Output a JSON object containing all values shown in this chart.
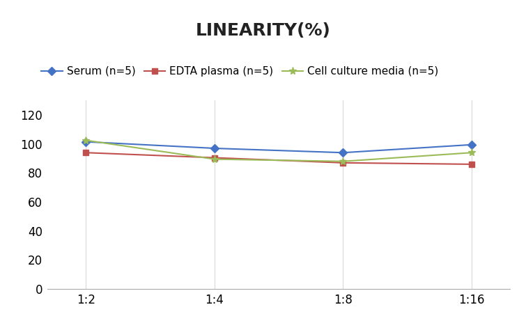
{
  "title": "LINEARITY(%)",
  "x_labels": [
    "1:2",
    "1:4",
    "1:8",
    "1:16"
  ],
  "x_positions": [
    0,
    1,
    2,
    3
  ],
  "series": [
    {
      "label": "Serum (n=5)",
      "color": "#4472C4",
      "marker": "D",
      "markersize": 6,
      "values": [
        101.5,
        97.0,
        94.0,
        99.5
      ]
    },
    {
      "label": "EDTA plasma (n=5)",
      "color": "#C0504D",
      "marker": "s",
      "markersize": 6,
      "values": [
        94.0,
        90.5,
        87.0,
        86.0
      ]
    },
    {
      "label": "Cell culture media (n=5)",
      "color": "#9BBB59",
      "marker": "*",
      "markersize": 8,
      "values": [
        102.5,
        89.5,
        88.0,
        94.0
      ]
    }
  ],
  "ylim": [
    0,
    130
  ],
  "yticks": [
    0,
    20,
    40,
    60,
    80,
    100,
    120
  ],
  "background_color": "#ffffff",
  "title_fontsize": 18,
  "legend_fontsize": 11,
  "tick_fontsize": 12,
  "grid_color": "#d8d8d8",
  "spine_color": "#aaaaaa"
}
